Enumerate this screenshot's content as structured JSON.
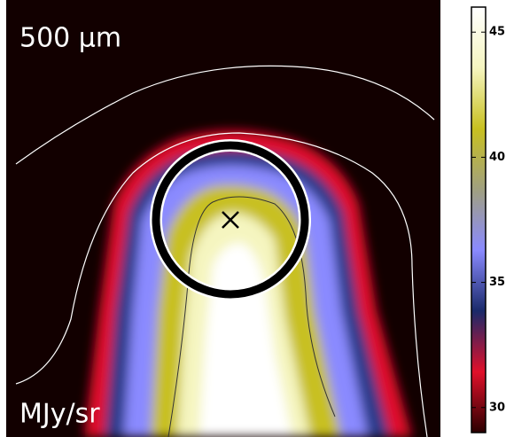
{
  "chart_data": {
    "type": "image",
    "wavelength_label": "500 μm",
    "unit_label": "MJy/sr",
    "colorbar": {
      "lim": [
        29,
        46
      ],
      "ticks": [
        30,
        35,
        40,
        45
      ],
      "colors": [
        "#2a0000",
        "#e0102a",
        "#1a2a6a",
        "#8a8aff",
        "#a0a080",
        "#c8c020",
        "#f5f5c0",
        "#ffffff"
      ]
    }
  }
}
